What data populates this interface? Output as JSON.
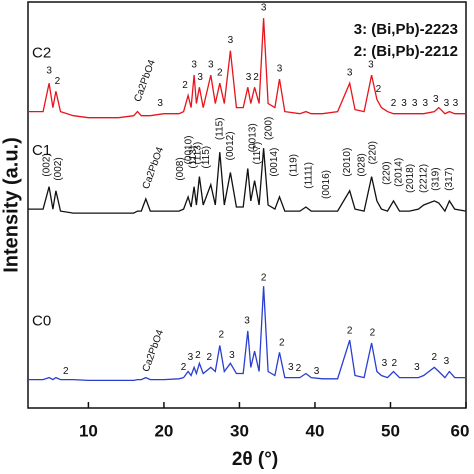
{
  "chart_data": {
    "type": "line",
    "ylabel": "Intensity (a.u.)",
    "xlabel": "2θ (°)",
    "legend_notes": [
      "3: (Bi,Pb)-2223",
      "2: (Bi,Pb)-2212"
    ],
    "xlim": [
      2,
      60
    ],
    "xticks": [
      10,
      20,
      30,
      40,
      50,
      60
    ],
    "ylim": [
      0,
      100
    ],
    "x": [
      2,
      4,
      4.8,
      5.3,
      5.7,
      6.3,
      8,
      10,
      12,
      14,
      16,
      16.5,
      17,
      17.6,
      18.2,
      20,
      22,
      22.6,
      23.2,
      23.6,
      24.0,
      24.3,
      24.7,
      25.2,
      26.2,
      26.8,
      27.4,
      28.0,
      28.8,
      29.6,
      30.5,
      31.1,
      31.5,
      32.0,
      32.6,
      33.2,
      33.8,
      34.7,
      35.3,
      36,
      38,
      38.8,
      39.5,
      41,
      43,
      44.6,
      45.3,
      46.5,
      47.5,
      48.2,
      48.8,
      49.6,
      50.4,
      51.2,
      52.5,
      53.7,
      54.4,
      55.8,
      56.4,
      57.2,
      57.8,
      58.5,
      60
    ],
    "series": [
      {
        "name": "C2",
        "color": "#e8141b",
        "values": [
          73,
          73,
          80,
          74,
          78,
          73,
          72,
          71.5,
          71.5,
          71.5,
          72,
          73,
          72,
          72,
          72,
          72.5,
          72.5,
          73,
          77,
          74,
          82,
          75,
          79,
          74,
          82,
          75,
          80,
          75,
          88,
          74,
          74,
          79,
          75,
          79,
          75,
          96,
          75,
          74,
          81,
          73,
          72.5,
          73,
          72.5,
          72.5,
          73,
          80,
          73.5,
          73,
          82,
          76,
          74,
          73,
          72.5,
          72.5,
          72.5,
          72.5,
          72.5,
          73,
          74,
          72.5,
          73,
          72.5,
          72.5
        ]
      },
      {
        "name": "C1",
        "color": "#111111",
        "values": [
          49,
          49,
          54.5,
          49,
          53.5,
          48.5,
          48,
          48,
          48,
          48,
          48,
          48.5,
          48.5,
          51.5,
          48.5,
          48.5,
          48.5,
          49,
          52,
          49.5,
          54.5,
          50,
          57,
          50,
          55,
          50,
          63,
          50,
          58,
          49.5,
          49.5,
          59,
          51,
          56,
          50,
          64,
          50,
          49,
          52,
          48.5,
          48.5,
          49.5,
          48.5,
          48.5,
          48.5,
          53.5,
          49,
          48.5,
          57,
          51,
          49,
          48.5,
          51,
          48.5,
          48.5,
          49,
          50,
          51,
          50.5,
          48.5,
          51,
          49,
          48.5
        ]
      },
      {
        "name": "C0",
        "color": "#2a3fd0",
        "values": [
          7,
          7,
          7.5,
          7,
          7.5,
          7,
          7,
          6.8,
          6.8,
          6.8,
          6.8,
          7,
          7,
          7.5,
          7,
          7,
          7.2,
          7.5,
          9,
          8,
          10,
          8.5,
          11,
          8.5,
          10,
          9,
          15.4,
          9,
          11,
          8.5,
          8.5,
          19,
          10,
          14,
          9,
          30,
          9,
          8,
          13.7,
          7.5,
          7.5,
          8.5,
          7.5,
          7.2,
          7.2,
          16.7,
          8,
          7.5,
          16,
          9,
          8,
          7.5,
          9,
          7.5,
          7.5,
          7.5,
          8,
          10,
          9,
          7.5,
          9,
          7.5,
          7.5
        ]
      }
    ],
    "annotations": [
      {
        "text": "3",
        "x": 4.8,
        "y": 83
      },
      {
        "text": "2",
        "x": 5.9,
        "y": 80.5
      },
      {
        "text": "Ca2PbO4",
        "x": 16.5,
        "y": 75.5,
        "rotation": -70
      },
      {
        "text": "3",
        "x": 19.5,
        "y": 75
      },
      {
        "text": "2",
        "x": 22.8,
        "y": 79.5
      },
      {
        "text": "3",
        "x": 24.0,
        "y": 84.5
      },
      {
        "text": "3",
        "x": 24.8,
        "y": 81.5
      },
      {
        "text": "3",
        "x": 26.2,
        "y": 84.5
      },
      {
        "text": "2",
        "x": 27.4,
        "y": 82.5
      },
      {
        "text": "3",
        "x": 28.8,
        "y": 90.5
      },
      {
        "text": "3",
        "x": 31.2,
        "y": 81.5
      },
      {
        "text": "2",
        "x": 32.2,
        "y": 81.5
      },
      {
        "text": "3",
        "x": 33.2,
        "y": 98.5
      },
      {
        "text": "3",
        "x": 35.3,
        "y": 83.5
      },
      {
        "text": "3",
        "x": 44.6,
        "y": 82.5
      },
      {
        "text": "3",
        "x": 47.4,
        "y": 84.5
      },
      {
        "text": "2",
        "x": 48.4,
        "y": 78.5
      },
      {
        "text": "2",
        "x": 50.4,
        "y": 75
      },
      {
        "text": "3",
        "x": 51.8,
        "y": 75
      },
      {
        "text": "3",
        "x": 53.2,
        "y": 75
      },
      {
        "text": "3",
        "x": 54.6,
        "y": 75
      },
      {
        "text": "3",
        "x": 56.0,
        "y": 76
      },
      {
        "text": "3",
        "x": 57.4,
        "y": 75
      },
      {
        "text": "3",
        "x": 58.6,
        "y": 75
      },
      {
        "text": "(002)",
        "x": 4.5,
        "y": 57,
        "rotation": -90
      },
      {
        "text": "(002)",
        "x": 6.0,
        "y": 56,
        "rotation": -90
      },
      {
        "text": "Ca2PbO4",
        "x": 17.6,
        "y": 54,
        "rotation": -70
      },
      {
        "text": "(008)",
        "x": 22.2,
        "y": 56,
        "rotation": -90
      },
      {
        "text": "(0010)",
        "x": 23.3,
        "y": 60,
        "rotation": -90
      },
      {
        "text": "(113)",
        "x": 23.9,
        "y": 59,
        "rotation": -90
      },
      {
        "text": "(113)",
        "x": 24.5,
        "y": 60,
        "rotation": -90
      },
      {
        "text": "(115)",
        "x": 25.6,
        "y": 59,
        "rotation": -90
      },
      {
        "text": "(115)",
        "x": 27.4,
        "y": 66,
        "rotation": -90
      },
      {
        "text": "(0012)",
        "x": 28.8,
        "y": 61,
        "rotation": -90
      },
      {
        "text": "(0013)",
        "x": 31.8,
        "y": 63,
        "rotation": -90
      },
      {
        "text": "(117)",
        "x": 32.4,
        "y": 60,
        "rotation": -90
      },
      {
        "text": "(200)",
        "x": 33.9,
        "y": 66,
        "rotation": -90
      },
      {
        "text": "(0014)",
        "x": 34.6,
        "y": 57,
        "rotation": -90
      },
      {
        "text": "(119)",
        "x": 37.2,
        "y": 57,
        "rotation": -90
      },
      {
        "text": "(1111)",
        "x": 39.2,
        "y": 54,
        "rotation": -90
      },
      {
        "text": "(0016)",
        "x": 41.5,
        "y": 51.5,
        "rotation": -90
      },
      {
        "text": "(2010)",
        "x": 44.3,
        "y": 57,
        "rotation": -90
      },
      {
        "text": "(028)",
        "x": 46.2,
        "y": 57,
        "rotation": -90
      },
      {
        "text": "(220)",
        "x": 47.7,
        "y": 60,
        "rotation": -90
      },
      {
        "text": "(220)",
        "x": 49.5,
        "y": 55,
        "rotation": -90
      },
      {
        "text": "(2014)",
        "x": 51.1,
        "y": 54.5,
        "rotation": -90
      },
      {
        "text": "(2018)",
        "x": 52.6,
        "y": 53,
        "rotation": -90
      },
      {
        "text": "(2212)",
        "x": 54.4,
        "y": 53,
        "rotation": -90
      },
      {
        "text": "(319)",
        "x": 56.0,
        "y": 53.5,
        "rotation": -90
      },
      {
        "text": "(317)",
        "x": 57.8,
        "y": 53.5,
        "rotation": -90
      },
      {
        "text": "2",
        "x": 7,
        "y": 9
      },
      {
        "text": "Ca2PbO4",
        "x": 17.6,
        "y": 9,
        "rotation": -70
      },
      {
        "text": "2",
        "x": 22.6,
        "y": 10
      },
      {
        "text": "3",
        "x": 23.5,
        "y": 12.5
      },
      {
        "text": "2",
        "x": 24.5,
        "y": 13
      },
      {
        "text": "2",
        "x": 26,
        "y": 12.5
      },
      {
        "text": "2",
        "x": 27.6,
        "y": 18
      },
      {
        "text": "3",
        "x": 29,
        "y": 13
      },
      {
        "text": "3",
        "x": 31,
        "y": 21.5
      },
      {
        "text": "2",
        "x": 33.2,
        "y": 32
      },
      {
        "text": "2",
        "x": 35.6,
        "y": 16
      },
      {
        "text": "3",
        "x": 36.8,
        "y": 10
      },
      {
        "text": "2",
        "x": 37.8,
        "y": 9.8
      },
      {
        "text": "3",
        "x": 40.2,
        "y": 9
      },
      {
        "text": "2",
        "x": 44.6,
        "y": 19
      },
      {
        "text": "2",
        "x": 47.6,
        "y": 18.5
      },
      {
        "text": "3",
        "x": 49.2,
        "y": 11
      },
      {
        "text": "2",
        "x": 50.5,
        "y": 11
      },
      {
        "text": "3",
        "x": 53.5,
        "y": 10
      },
      {
        "text": "2",
        "x": 55.8,
        "y": 12.5
      },
      {
        "text": "3",
        "x": 57.4,
        "y": 11.5
      }
    ]
  }
}
